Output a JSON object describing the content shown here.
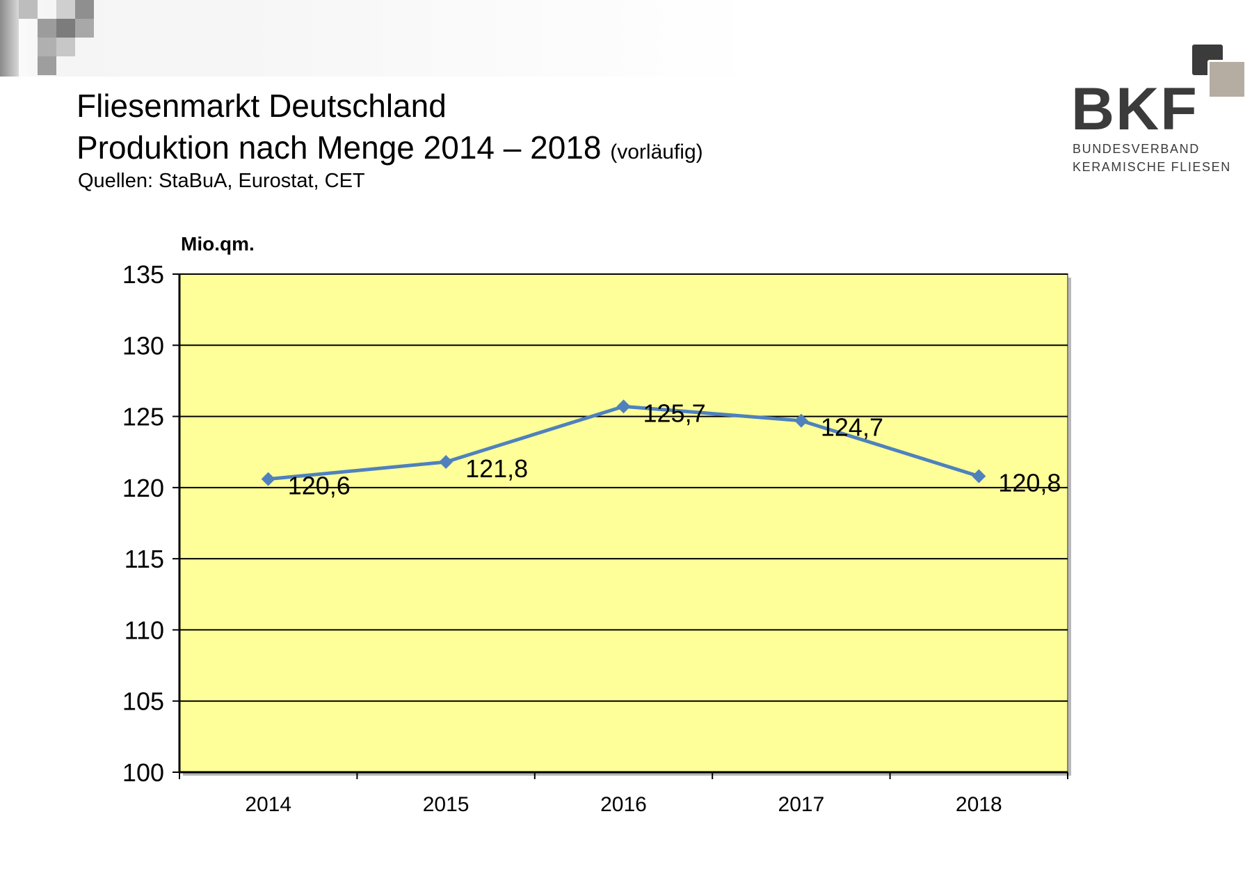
{
  "header": {
    "title_line1": "Fliesenmarkt Deutschland",
    "title_line2": "Produktion nach Menge 2014 – 2018",
    "title_note": "(vorläufig)",
    "source": "Quellen: StaBuA, Eurostat, CET"
  },
  "logo": {
    "word": "BKF",
    "line1": "BUNDESVERBAND",
    "line2": "KERAMISCHE FLIESEN"
  },
  "colors": {
    "plot_background": "#ffff99",
    "series_line": "#4f81bd",
    "grid": "#000000"
  },
  "chart_data": {
    "type": "line",
    "title": "",
    "xlabel": "",
    "ylabel": "Mio.qm.",
    "categories": [
      "2014",
      "2015",
      "2016",
      "2017",
      "2018"
    ],
    "series": [
      {
        "values": [
          120.6,
          121.8,
          125.7,
          124.7,
          120.8
        ]
      }
    ],
    "data_labels": [
      "120,6",
      "121,8",
      "125,7",
      "124,7",
      "120,8"
    ],
    "ylim": [
      100,
      135
    ],
    "yticks": [
      100,
      105,
      110,
      115,
      120,
      125,
      130,
      135
    ],
    "grid": true,
    "legend": "none"
  }
}
